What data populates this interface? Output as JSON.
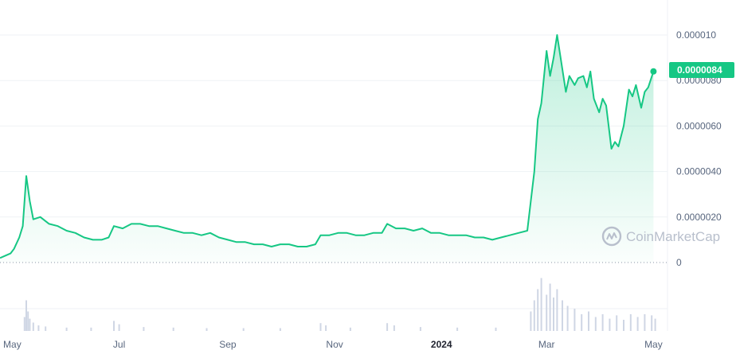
{
  "colors": {
    "line": "#16c784",
    "grid": "#eff2f5",
    "text": "#58667e",
    "volume": "#cfd6e4",
    "watermark": "#b8bfcc"
  },
  "watermark": {
    "icon": "coinmarketcap-logo-icon",
    "text": "CoinMarketCap"
  },
  "chart_data": {
    "type": "area",
    "xlim": [
      "2023-04-24",
      "2024-05-09"
    ],
    "ylim": [
      0,
      1.05e-05
    ],
    "grid": true,
    "y_ticks": [
      {
        "value": 0,
        "label": "0"
      },
      {
        "value": 2e-06,
        "label": "0.0000020"
      },
      {
        "value": 4e-06,
        "label": "0.0000040"
      },
      {
        "value": 6e-06,
        "label": "0.0000060"
      },
      {
        "value": 8e-06,
        "label": "0.0000080"
      },
      {
        "value": 1e-05,
        "label": "0.000010"
      }
    ],
    "x_ticks": [
      {
        "date": "2023-05-01",
        "label": "May",
        "bold": false
      },
      {
        "date": "2023-07-01",
        "label": "Jul",
        "bold": false
      },
      {
        "date": "2023-09-01",
        "label": "Sep",
        "bold": false
      },
      {
        "date": "2023-11-01",
        "label": "Nov",
        "bold": false
      },
      {
        "date": "2024-01-01",
        "label": "2024",
        "bold": true
      },
      {
        "date": "2024-03-01",
        "label": "Mar",
        "bold": false
      },
      {
        "date": "2024-05-01",
        "label": "May",
        "bold": false
      }
    ],
    "current_price": {
      "value": 8.4e-06,
      "label": "0.0000084"
    },
    "series": [
      {
        "points": [
          [
            "2023-04-24",
            2e-07
          ],
          [
            "2023-04-27",
            3e-07
          ],
          [
            "2023-04-30",
            4e-07
          ],
          [
            "2023-05-02",
            6e-07
          ],
          [
            "2023-05-05",
            1.1e-06
          ],
          [
            "2023-05-07",
            1.6e-06
          ],
          [
            "2023-05-09",
            3.8e-06
          ],
          [
            "2023-05-11",
            2.7e-06
          ],
          [
            "2023-05-13",
            1.9e-06
          ],
          [
            "2023-05-17",
            2e-06
          ],
          [
            "2023-05-22",
            1.7e-06
          ],
          [
            "2023-05-27",
            1.6e-06
          ],
          [
            "2023-06-01",
            1.4e-06
          ],
          [
            "2023-06-06",
            1.3e-06
          ],
          [
            "2023-06-11",
            1.1e-06
          ],
          [
            "2023-06-16",
            1e-06
          ],
          [
            "2023-06-21",
            1e-06
          ],
          [
            "2023-06-25",
            1.1e-06
          ],
          [
            "2023-06-28",
            1.6e-06
          ],
          [
            "2023-07-03",
            1.5e-06
          ],
          [
            "2023-07-08",
            1.7e-06
          ],
          [
            "2023-07-13",
            1.7e-06
          ],
          [
            "2023-07-18",
            1.6e-06
          ],
          [
            "2023-07-23",
            1.6e-06
          ],
          [
            "2023-07-28",
            1.5e-06
          ],
          [
            "2023-08-02",
            1.4e-06
          ],
          [
            "2023-08-07",
            1.3e-06
          ],
          [
            "2023-08-12",
            1.3e-06
          ],
          [
            "2023-08-17",
            1.2e-06
          ],
          [
            "2023-08-22",
            1.3e-06
          ],
          [
            "2023-08-27",
            1.1e-06
          ],
          [
            "2023-09-01",
            1e-06
          ],
          [
            "2023-09-06",
            9e-07
          ],
          [
            "2023-09-11",
            9e-07
          ],
          [
            "2023-09-16",
            8e-07
          ],
          [
            "2023-09-21",
            8e-07
          ],
          [
            "2023-09-26",
            7e-07
          ],
          [
            "2023-10-01",
            8e-07
          ],
          [
            "2023-10-06",
            8e-07
          ],
          [
            "2023-10-11",
            7e-07
          ],
          [
            "2023-10-16",
            7e-07
          ],
          [
            "2023-10-21",
            8e-07
          ],
          [
            "2023-10-24",
            1.2e-06
          ],
          [
            "2023-10-29",
            1.2e-06
          ],
          [
            "2023-11-03",
            1.3e-06
          ],
          [
            "2023-11-08",
            1.3e-06
          ],
          [
            "2023-11-13",
            1.2e-06
          ],
          [
            "2023-11-18",
            1.2e-06
          ],
          [
            "2023-11-23",
            1.3e-06
          ],
          [
            "2023-11-28",
            1.3e-06
          ],
          [
            "2023-12-01",
            1.7e-06
          ],
          [
            "2023-12-06",
            1.5e-06
          ],
          [
            "2023-12-11",
            1.5e-06
          ],
          [
            "2023-12-16",
            1.4e-06
          ],
          [
            "2023-12-21",
            1.5e-06
          ],
          [
            "2023-12-26",
            1.3e-06
          ],
          [
            "2023-12-31",
            1.3e-06
          ],
          [
            "2024-01-05",
            1.2e-06
          ],
          [
            "2024-01-10",
            1.2e-06
          ],
          [
            "2024-01-15",
            1.2e-06
          ],
          [
            "2024-01-20",
            1.1e-06
          ],
          [
            "2024-01-25",
            1.1e-06
          ],
          [
            "2024-01-30",
            1e-06
          ],
          [
            "2024-02-04",
            1.1e-06
          ],
          [
            "2024-02-09",
            1.2e-06
          ],
          [
            "2024-02-14",
            1.3e-06
          ],
          [
            "2024-02-19",
            1.4e-06
          ],
          [
            "2024-02-21",
            2.7e-06
          ],
          [
            "2024-02-23",
            4e-06
          ],
          [
            "2024-02-25",
            6.3e-06
          ],
          [
            "2024-02-27",
            7e-06
          ],
          [
            "2024-03-01",
            9.3e-06
          ],
          [
            "2024-03-03",
            8.2e-06
          ],
          [
            "2024-03-05",
            9e-06
          ],
          [
            "2024-03-07",
            1e-05
          ],
          [
            "2024-03-10",
            8.5e-06
          ],
          [
            "2024-03-12",
            7.5e-06
          ],
          [
            "2024-03-14",
            8.2e-06
          ],
          [
            "2024-03-17",
            7.8e-06
          ],
          [
            "2024-03-19",
            8.1e-06
          ],
          [
            "2024-03-22",
            8.2e-06
          ],
          [
            "2024-03-24",
            7.7e-06
          ],
          [
            "2024-03-26",
            8.4e-06
          ],
          [
            "2024-03-28",
            7.2e-06
          ],
          [
            "2024-03-31",
            6.6e-06
          ],
          [
            "2024-04-02",
            7.2e-06
          ],
          [
            "2024-04-04",
            6.9e-06
          ],
          [
            "2024-04-07",
            5e-06
          ],
          [
            "2024-04-09",
            5.3e-06
          ],
          [
            "2024-04-11",
            5.1e-06
          ],
          [
            "2024-04-14",
            6e-06
          ],
          [
            "2024-04-17",
            7.6e-06
          ],
          [
            "2024-04-19",
            7.3e-06
          ],
          [
            "2024-04-21",
            7.8e-06
          ],
          [
            "2024-04-24",
            6.8e-06
          ],
          [
            "2024-04-26",
            7.5e-06
          ],
          [
            "2024-04-28",
            7.7e-06
          ],
          [
            "2024-05-01",
            8.4e-06
          ]
        ]
      }
    ],
    "volume_note": "relative volume bars",
    "volume": [
      [
        "2023-05-08",
        0.25
      ],
      [
        "2023-05-09",
        0.55
      ],
      [
        "2023-05-10",
        0.35
      ],
      [
        "2023-05-11",
        0.22
      ],
      [
        "2023-05-13",
        0.15
      ],
      [
        "2023-05-16",
        0.1
      ],
      [
        "2023-05-20",
        0.08
      ],
      [
        "2023-06-01",
        0.06
      ],
      [
        "2023-06-15",
        0.06
      ],
      [
        "2023-06-28",
        0.18
      ],
      [
        "2023-07-01",
        0.12
      ],
      [
        "2023-07-15",
        0.07
      ],
      [
        "2023-08-01",
        0.06
      ],
      [
        "2023-08-20",
        0.05
      ],
      [
        "2023-09-10",
        0.05
      ],
      [
        "2023-10-01",
        0.05
      ],
      [
        "2023-10-24",
        0.14
      ],
      [
        "2023-10-27",
        0.1
      ],
      [
        "2023-11-10",
        0.06
      ],
      [
        "2023-12-01",
        0.14
      ],
      [
        "2023-12-05",
        0.1
      ],
      [
        "2023-12-20",
        0.07
      ],
      [
        "2024-01-10",
        0.06
      ],
      [
        "2024-02-01",
        0.06
      ],
      [
        "2024-02-21",
        0.35
      ],
      [
        "2024-02-23",
        0.55
      ],
      [
        "2024-02-25",
        0.75
      ],
      [
        "2024-02-27",
        0.95
      ],
      [
        "2024-03-01",
        0.65
      ],
      [
        "2024-03-03",
        0.85
      ],
      [
        "2024-03-05",
        0.6
      ],
      [
        "2024-03-07",
        0.75
      ],
      [
        "2024-03-10",
        0.55
      ],
      [
        "2024-03-13",
        0.45
      ],
      [
        "2024-03-17",
        0.4
      ],
      [
        "2024-03-21",
        0.3
      ],
      [
        "2024-03-25",
        0.35
      ],
      [
        "2024-03-29",
        0.25
      ],
      [
        "2024-04-02",
        0.3
      ],
      [
        "2024-04-06",
        0.22
      ],
      [
        "2024-04-10",
        0.28
      ],
      [
        "2024-04-14",
        0.2
      ],
      [
        "2024-04-18",
        0.3
      ],
      [
        "2024-04-22",
        0.25
      ],
      [
        "2024-04-26",
        0.3
      ],
      [
        "2024-04-30",
        0.28
      ],
      [
        "2024-05-02",
        0.22
      ]
    ]
  }
}
